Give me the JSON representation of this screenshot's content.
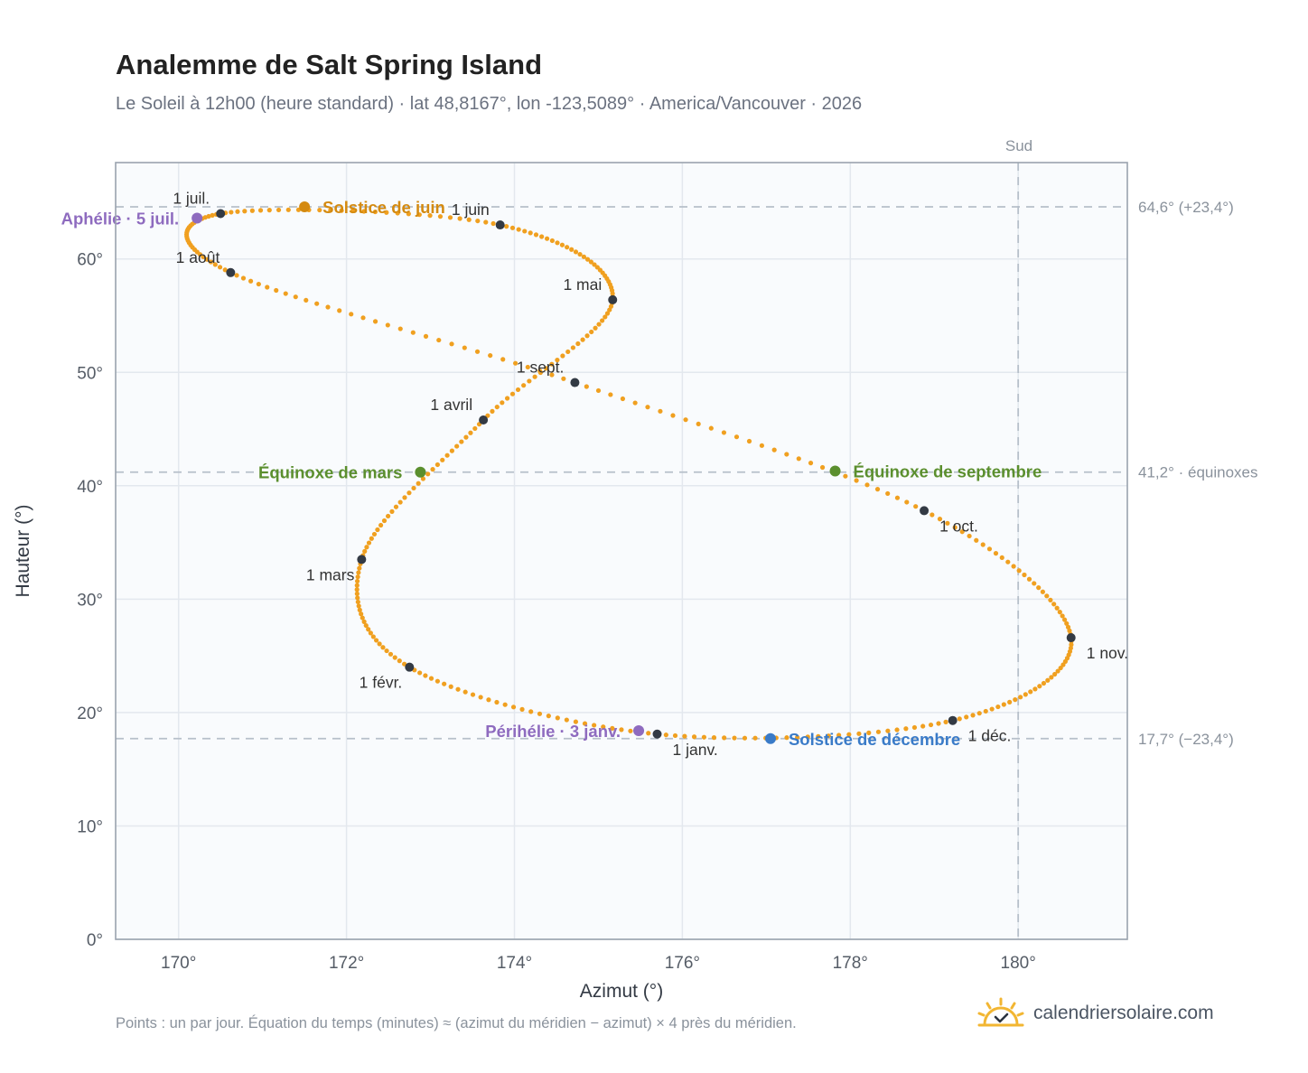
{
  "header": {
    "title": "Analemme de Salt Spring Island",
    "subtitle": "Le Soleil à 12h00 (heure standard) · lat 48,8167°, lon -123,5089° · America/Vancouver · 2026"
  },
  "footer": {
    "note": "Points : un par jour. Équation du temps (minutes) ≈ (azimut du méridien − azimut) × 4 près du méridien.",
    "brand": "calendriersolaire.com",
    "brand_icon": "sun-check-icon"
  },
  "chart_data": {
    "type": "scatter",
    "xlabel": "Azimut (°)",
    "ylabel": "Hauteur (°)",
    "xlim": [
      169.25,
      181.3
    ],
    "ylim": [
      0,
      68.5
    ],
    "x_ticks": [
      170,
      172,
      174,
      176,
      178,
      180
    ],
    "x_tick_labels": [
      "170°",
      "172°",
      "174°",
      "176°",
      "178°",
      "180°"
    ],
    "y_ticks": [
      0,
      10,
      20,
      30,
      40,
      50,
      60
    ],
    "y_tick_labels": [
      "0°",
      "10°",
      "20°",
      "30°",
      "40°",
      "50°",
      "60°"
    ],
    "grid": true,
    "meridian": {
      "x": 180,
      "label": "Sud"
    },
    "reference_lines": [
      {
        "y": 64.6,
        "label": "64,6° (+23,4°)"
      },
      {
        "y": 41.2,
        "label": "41,2° · équinoxes"
      },
      {
        "y": 17.7,
        "label": "17,7° (−23,4°)"
      }
    ],
    "series_color": "#f0a020",
    "month_markers": [
      {
        "label": "1 janv.",
        "x": 175.7,
        "y": 18.1,
        "label_pos": "below-right"
      },
      {
        "label": "1 févr.",
        "x": 172.75,
        "y": 24.0,
        "label_pos": "below-left"
      },
      {
        "label": "1 mars",
        "x": 172.18,
        "y": 33.5,
        "label_pos": "below-left"
      },
      {
        "label": "1 avril",
        "x": 173.63,
        "y": 45.8,
        "label_pos": "above-left"
      },
      {
        "label": "1 mai",
        "x": 175.17,
        "y": 56.4,
        "label_pos": "above-left"
      },
      {
        "label": "1 juin",
        "x": 173.83,
        "y": 63.0,
        "label_pos": "above-left"
      },
      {
        "label": "1 juil.",
        "x": 170.5,
        "y": 64.0,
        "label_pos": "above-left"
      },
      {
        "label": "1 août",
        "x": 170.62,
        "y": 58.8,
        "label_pos": "above-left"
      },
      {
        "label": "1 sept.",
        "x": 174.72,
        "y": 49.1,
        "label_pos": "above-left"
      },
      {
        "label": "1 oct.",
        "x": 178.88,
        "y": 37.8,
        "label_pos": "below-right"
      },
      {
        "label": "1 nov.",
        "x": 180.63,
        "y": 26.6,
        "label_pos": "below-right"
      },
      {
        "label": "1 déc.",
        "x": 179.22,
        "y": 19.3,
        "label_pos": "below-right"
      }
    ],
    "events": [
      {
        "label": "Solstice de juin",
        "x": 171.5,
        "y": 64.6,
        "color": "#d48a10",
        "label_pos": "right"
      },
      {
        "label": "Aphélie · 5 juil.",
        "x": 170.22,
        "y": 63.6,
        "color": "#8e6bbf",
        "label_pos": "left"
      },
      {
        "label": "Équinoxe de mars",
        "x": 172.88,
        "y": 41.2,
        "color": "#5b8f2e",
        "label_pos": "left"
      },
      {
        "label": "Équinoxe de septembre",
        "x": 177.82,
        "y": 41.3,
        "color": "#5b8f2e",
        "label_pos": "right"
      },
      {
        "label": "Périhélie · 3 janv.",
        "x": 175.48,
        "y": 18.4,
        "color": "#8e6bbf",
        "label_pos": "left"
      },
      {
        "label": "Solstice de décembre",
        "x": 177.05,
        "y": 17.7,
        "color": "#3a7bc8",
        "label_pos": "right"
      }
    ]
  }
}
